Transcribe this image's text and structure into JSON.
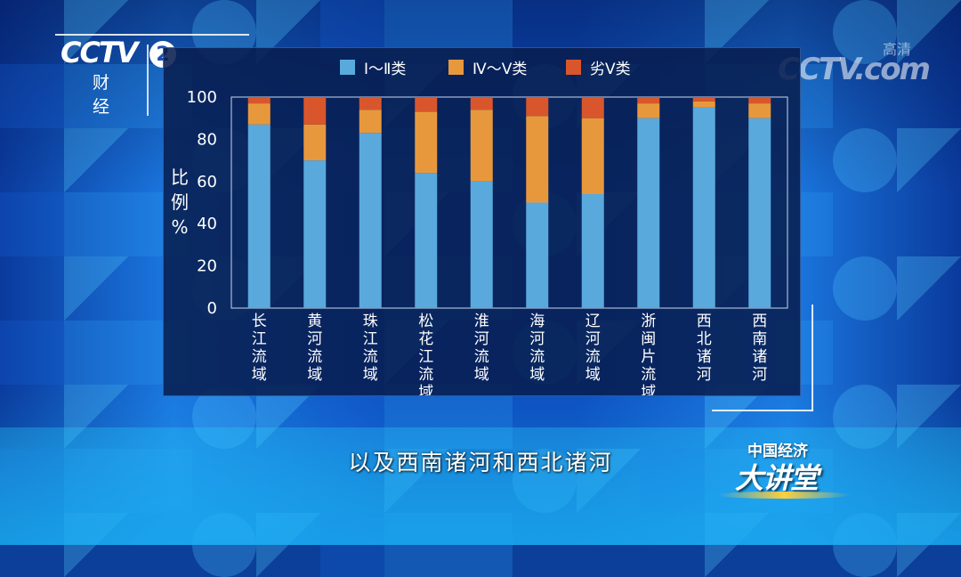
{
  "broadcast": {
    "channel_logo_text": "CCTV",
    "channel_number": "2",
    "channel_name": "财经",
    "site_logo_text": "CCTV.com",
    "site_logo_small": "高清",
    "subtitle": "以及西南诸河和西北诸河",
    "program_logo_top": "中国经济",
    "program_logo_main": "大讲堂"
  },
  "chart_data": {
    "type": "bar",
    "stacked": true,
    "ylabel": "比例%",
    "ylim": [
      0,
      100
    ],
    "yticks": [
      0,
      20,
      40,
      60,
      80,
      100
    ],
    "legend_position": "top",
    "categories": [
      "长江流域",
      "黄河流域",
      "珠江流域",
      "松花江流域",
      "淮河流域",
      "海河流域",
      "辽河流域",
      "浙闽片流域",
      "西北诸河",
      "西南诸河"
    ],
    "series": [
      {
        "name": "Ⅰ～Ⅱ类",
        "color": "#5aa9dc",
        "values": [
          87,
          70,
          83,
          64,
          60,
          50,
          54,
          90,
          95,
          90
        ]
      },
      {
        "name": "Ⅳ～Ⅴ类",
        "color": "#e8983c",
        "values": [
          10,
          17,
          11,
          29,
          34,
          41,
          36,
          7,
          3,
          7
        ]
      },
      {
        "name": "劣Ⅴ类",
        "color": "#d9562c",
        "values": [
          3,
          13,
          6,
          7,
          6,
          9,
          10,
          3,
          2,
          3
        ]
      }
    ]
  }
}
